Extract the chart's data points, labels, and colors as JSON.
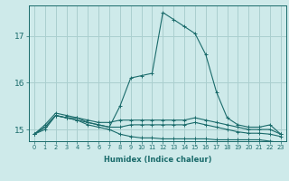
{
  "xlabel": "Humidex (Indice chaleur)",
  "ylabel": "",
  "background_color": "#ceeaea",
  "grid_color": "#aacfcf",
  "line_color": "#1a6b6b",
  "x_min": -0.5,
  "x_max": 23.5,
  "y_min": 14.75,
  "y_max": 17.65,
  "yticks": [
    15,
    16,
    17
  ],
  "xticks": [
    0,
    1,
    2,
    3,
    4,
    5,
    6,
    7,
    8,
    9,
    10,
    11,
    12,
    13,
    14,
    15,
    16,
    17,
    18,
    19,
    20,
    21,
    22,
    23
  ],
  "lines": [
    {
      "x": [
        0,
        1,
        2,
        3,
        4,
        5,
        6,
        7,
        8,
        9,
        10,
        11,
        12,
        13,
        14,
        15,
        16,
        17,
        18,
        19,
        20,
        21,
        22,
        23
      ],
      "y": [
        14.9,
        15.1,
        15.35,
        15.3,
        15.25,
        15.15,
        15.1,
        15.05,
        15.5,
        16.1,
        16.15,
        16.2,
        17.5,
        17.35,
        17.2,
        17.05,
        16.6,
        15.8,
        15.25,
        15.1,
        15.05,
        15.05,
        15.1,
        14.9
      ]
    },
    {
      "x": [
        0,
        1,
        2,
        3,
        4,
        5,
        6,
        7,
        8,
        9,
        10,
        11,
        12,
        13,
        14,
        15,
        16,
        17,
        18,
        19,
        20,
        21,
        22,
        23
      ],
      "y": [
        14.9,
        15.05,
        15.3,
        15.25,
        15.25,
        15.2,
        15.15,
        15.15,
        15.2,
        15.2,
        15.2,
        15.2,
        15.2,
        15.2,
        15.2,
        15.25,
        15.2,
        15.15,
        15.1,
        15.05,
        15.0,
        15.0,
        15.0,
        14.9
      ]
    },
    {
      "x": [
        0,
        1,
        2,
        3,
        4,
        5,
        6,
        7,
        8,
        9,
        10,
        11,
        12,
        13,
        14,
        15,
        16,
        17,
        18,
        19,
        20,
        21,
        22,
        23
      ],
      "y": [
        14.9,
        15.05,
        15.3,
        15.25,
        15.2,
        15.15,
        15.1,
        15.05,
        15.05,
        15.1,
        15.1,
        15.1,
        15.1,
        15.1,
        15.1,
        15.15,
        15.1,
        15.05,
        15.0,
        14.95,
        14.92,
        14.92,
        14.9,
        14.85
      ]
    },
    {
      "x": [
        0,
        1,
        2,
        3,
        4,
        5,
        6,
        7,
        8,
        9,
        10,
        11,
        12,
        13,
        14,
        15,
        16,
        17,
        18,
        19,
        20,
        21,
        22,
        23
      ],
      "y": [
        14.9,
        15.0,
        15.3,
        15.25,
        15.2,
        15.1,
        15.05,
        15.0,
        14.9,
        14.85,
        14.82,
        14.82,
        14.8,
        14.8,
        14.8,
        14.8,
        14.8,
        14.78,
        14.78,
        14.78,
        14.78,
        14.78,
        14.75,
        14.72
      ]
    }
  ]
}
